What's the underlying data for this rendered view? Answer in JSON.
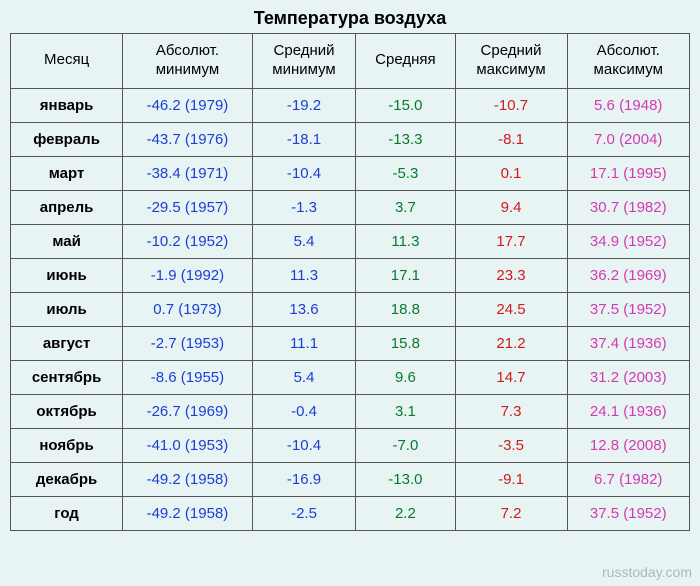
{
  "title": "Температура воздуха",
  "columns": [
    {
      "label_line1": "Месяц",
      "label_line2": ""
    },
    {
      "label_line1": "Абсолют.",
      "label_line2": "минимум"
    },
    {
      "label_line1": "Средний",
      "label_line2": "минимум"
    },
    {
      "label_line1": "Средняя",
      "label_line2": ""
    },
    {
      "label_line1": "Средний",
      "label_line2": "максимум"
    },
    {
      "label_line1": "Абсолют.",
      "label_line2": "максимум"
    }
  ],
  "colors": {
    "background": "#e8f4f4",
    "border": "#555555",
    "month": "#000000",
    "abs_min": "#1a3fd4",
    "avg_min": "#1a3fd4",
    "avg": "#0a7a2a",
    "avg_max": "#d11a1a",
    "abs_max": "#d43ab0"
  },
  "rows": [
    {
      "month": "январь",
      "abs_min": "-46.2 (1979)",
      "avg_min": "-19.2",
      "avg": "-15.0",
      "avg_max": "-10.7",
      "abs_max": "5.6 (1948)"
    },
    {
      "month": "февраль",
      "abs_min": "-43.7 (1976)",
      "avg_min": "-18.1",
      "avg": "-13.3",
      "avg_max": "-8.1",
      "abs_max": "7.0 (2004)"
    },
    {
      "month": "март",
      "abs_min": "-38.4 (1971)",
      "avg_min": "-10.4",
      "avg": "-5.3",
      "avg_max": "0.1",
      "abs_max": "17.1 (1995)"
    },
    {
      "month": "апрель",
      "abs_min": "-29.5 (1957)",
      "avg_min": "-1.3",
      "avg": "3.7",
      "avg_max": "9.4",
      "abs_max": "30.7 (1982)"
    },
    {
      "month": "май",
      "abs_min": "-10.2 (1952)",
      "avg_min": "5.4",
      "avg": "11.3",
      "avg_max": "17.7",
      "abs_max": "34.9 (1952)"
    },
    {
      "month": "июнь",
      "abs_min": "-1.9 (1992)",
      "avg_min": "11.3",
      "avg": "17.1",
      "avg_max": "23.3",
      "abs_max": "36.2 (1969)"
    },
    {
      "month": "июль",
      "abs_min": "0.7 (1973)",
      "avg_min": "13.6",
      "avg": "18.8",
      "avg_max": "24.5",
      "abs_max": "37.5 (1952)"
    },
    {
      "month": "август",
      "abs_min": "-2.7 (1953)",
      "avg_min": "11.1",
      "avg": "15.8",
      "avg_max": "21.2",
      "abs_max": "37.4 (1936)"
    },
    {
      "month": "сентябрь",
      "abs_min": "-8.6 (1955)",
      "avg_min": "5.4",
      "avg": "9.6",
      "avg_max": "14.7",
      "abs_max": "31.2 (2003)"
    },
    {
      "month": "октябрь",
      "abs_min": "-26.7 (1969)",
      "avg_min": "-0.4",
      "avg": "3.1",
      "avg_max": "7.3",
      "abs_max": "24.1 (1936)"
    },
    {
      "month": "ноябрь",
      "abs_min": "-41.0 (1953)",
      "avg_min": "-10.4",
      "avg": "-7.0",
      "avg_max": "-3.5",
      "abs_max": "12.8 (2008)"
    },
    {
      "month": "декабрь",
      "abs_min": "-49.2 (1958)",
      "avg_min": "-16.9",
      "avg": "-13.0",
      "avg_max": "-9.1",
      "abs_max": "6.7 (1982)"
    },
    {
      "month": "год",
      "abs_min": "-49.2 (1958)",
      "avg_min": "-2.5",
      "avg": "2.2",
      "avg_max": "7.2",
      "abs_max": "37.5 (1952)"
    }
  ],
  "watermark": "russtoday.com"
}
